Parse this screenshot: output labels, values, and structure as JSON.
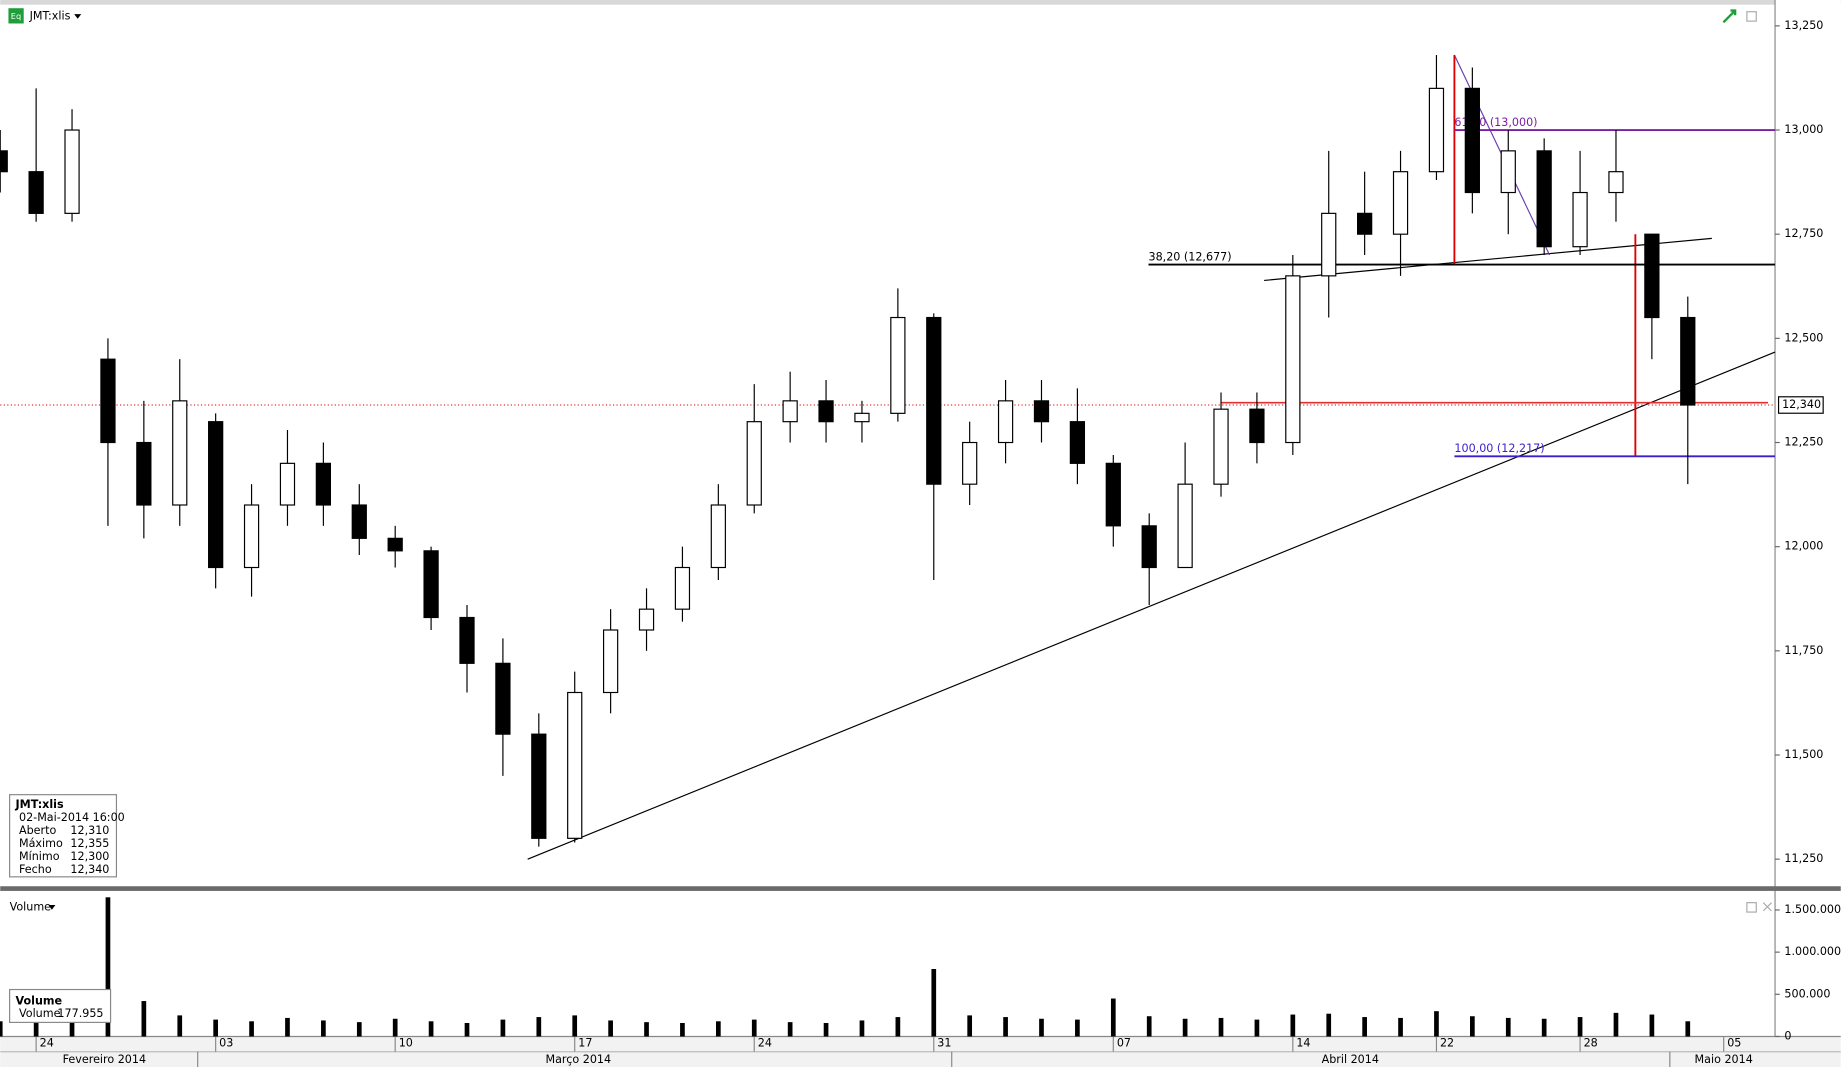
{
  "chart_data": [
    {
      "type": "candlestick",
      "title": "JMT:xlis",
      "open": [
        12950,
        12900,
        12800,
        12450,
        12250,
        12100,
        12300,
        11950,
        12100,
        12200,
        12100,
        12020,
        11990,
        11830,
        11720,
        11550,
        11300,
        11650,
        11800,
        11850,
        11950,
        12100,
        12300,
        12350,
        12300,
        12320,
        12550,
        12150,
        12250,
        12350,
        12300,
        12200,
        12050,
        11950,
        12150,
        12330,
        12250,
        12650,
        12800,
        12750,
        12900,
        13100,
        12850,
        12950,
        12720,
        12850,
        12750,
        12550
      ],
      "high": [
        13000,
        13100,
        13050,
        12500,
        12350,
        12450,
        12320,
        12150,
        12280,
        12250,
        12150,
        12050,
        12000,
        11860,
        11780,
        11600,
        11700,
        11850,
        11900,
        12000,
        12150,
        12390,
        12420,
        12400,
        12350,
        12620,
        12560,
        12300,
        12400,
        12400,
        12380,
        12220,
        12080,
        12250,
        12370,
        12370,
        12700,
        12950,
        12900,
        12950,
        13180,
        13150,
        13000,
        12980,
        12950,
        13000,
        12750,
        12600
      ],
      "low": [
        12850,
        12780,
        12780,
        12050,
        12020,
        12050,
        11900,
        11880,
        12050,
        12050,
        11980,
        11950,
        11800,
        11650,
        11450,
        11280,
        11290,
        11600,
        11750,
        11820,
        11920,
        12080,
        12250,
        12250,
        12250,
        12300,
        11920,
        12100,
        12200,
        12250,
        12150,
        12000,
        11860,
        11950,
        12120,
        12200,
        12220,
        12550,
        12700,
        12650,
        12880,
        12800,
        12750,
        12700,
        12700,
        12780,
        12450,
        12150
      ],
      "close": [
        12900,
        12800,
        13000,
        12250,
        12100,
        12350,
        11950,
        12100,
        12200,
        12100,
        12020,
        11990,
        11830,
        11720,
        11550,
        11300,
        11650,
        11800,
        11850,
        11950,
        12100,
        12300,
        12350,
        12300,
        12320,
        12550,
        12150,
        12250,
        12350,
        12300,
        12200,
        12050,
        11950,
        12150,
        12330,
        12250,
        12650,
        12800,
        12750,
        12900,
        13100,
        12850,
        12950,
        12720,
        12850,
        12900,
        12550,
        12340
      ],
      "up_color": "#ffffff",
      "down_color": "#000000",
      "xlim": [
        0,
        49.43
      ],
      "ylim": [
        11185,
        13298
      ],
      "yticks": [
        {
          "value": 11250,
          "label": "11,250"
        },
        {
          "value": 11500,
          "label": "11,500"
        },
        {
          "value": 11750,
          "label": "11,750"
        },
        {
          "value": 12000,
          "label": "12,000"
        },
        {
          "value": 12250,
          "label": "12,250"
        },
        {
          "value": 12500,
          "label": "12,500"
        },
        {
          "value": 12750,
          "label": "12,750"
        },
        {
          "value": 13000,
          "label": "13,000"
        },
        {
          "value": 13250,
          "label": "13,250"
        }
      ],
      "xticks": [
        {
          "value": 1,
          "label": "24"
        },
        {
          "value": 6,
          "label": "03"
        },
        {
          "value": 11,
          "label": "10"
        },
        {
          "value": 16,
          "label": "17"
        },
        {
          "value": 21,
          "label": "24"
        },
        {
          "value": 26,
          "label": "31"
        },
        {
          "value": 31,
          "label": "07"
        },
        {
          "value": 36,
          "label": "14"
        },
        {
          "value": 40,
          "label": "22"
        },
        {
          "value": 44,
          "label": "28"
        },
        {
          "value": 48,
          "label": "05"
        }
      ],
      "month_ticks": [
        {
          "value": 2.9,
          "label": "Fevereiro 2014"
        },
        {
          "value": 16.1,
          "label": "Março 2014"
        },
        {
          "value": 37.6,
          "label": "Abril 2014"
        },
        {
          "value": 48.0,
          "label": "Maio 2014"
        }
      ],
      "month_separators": [
        5.5,
        26.5,
        46.5
      ],
      "fib_levels": [
        {
          "label": "61,80 (13,000)",
          "value": 13000,
          "from": 40.5,
          "color": "#7b1fa2"
        },
        {
          "label": "38,20 (12,677)",
          "value": 12677,
          "from": 31.98,
          "color": "#000000"
        },
        {
          "label": "100,00 (12,217)",
          "value": 12217,
          "from": 40.5,
          "color": "#3a1fd0"
        }
      ],
      "last_price": {
        "value": 12340,
        "label": "12,340",
        "from": 34,
        "color": "#e03030"
      },
      "trendlines": [
        {
          "x": [
            14.69,
            49.43
          ],
          "y": [
            11250,
            12467
          ],
          "color": "#000000"
        },
        {
          "x": [
            35.2,
            47.67
          ],
          "y": [
            12639,
            12740
          ],
          "color": "#000000"
        },
        {
          "x": [
            40.5,
            43.15
          ],
          "y": [
            13180,
            12700
          ],
          "color": "#6a3fb0"
        },
        {
          "x": [
            40.5,
            40.5
          ],
          "y": [
            13180,
            12677
          ],
          "color": "#e00000"
        },
        {
          "x": [
            45.54,
            45.54
          ],
          "y": [
            12750,
            12217
          ],
          "color": "#e00000"
        }
      ],
      "info_box": {
        "title": "JMT:xlis",
        "time": "02-Mai-2014 16:00",
        "rows": [
          [
            "Aberto",
            "12,310"
          ],
          [
            "Máximo",
            "12,355"
          ],
          [
            "Mínimo",
            "12,300"
          ],
          [
            "Fecho",
            "12,340"
          ]
        ]
      }
    },
    {
      "type": "bar",
      "title": "Volume",
      "values": [
        180000,
        200000,
        220000,
        1650000,
        420000,
        250000,
        200000,
        180000,
        220000,
        190000,
        170000,
        210000,
        180000,
        160000,
        200000,
        230000,
        250000,
        190000,
        170000,
        160000,
        180000,
        200000,
        170000,
        160000,
        190000,
        230000,
        800000,
        250000,
        230000,
        210000,
        200000,
        450000,
        240000,
        210000,
        220000,
        200000,
        260000,
        270000,
        230000,
        220000,
        300000,
        240000,
        220000,
        210000,
        230000,
        280000,
        260000,
        180000
      ],
      "color": "#000000",
      "ylim": [
        0,
        1670000
      ],
      "yticks": [
        0,
        {
          "value": 500000,
          "label": "500.000"
        },
        {
          "value": 1000000,
          "label": "1.000.000"
        },
        {
          "value": 1500000,
          "label": "1.500.000"
        }
      ],
      "info_box": {
        "title": "Volume",
        "rows": [
          [
            "Volume",
            "177.955"
          ]
        ]
      }
    }
  ]
}
